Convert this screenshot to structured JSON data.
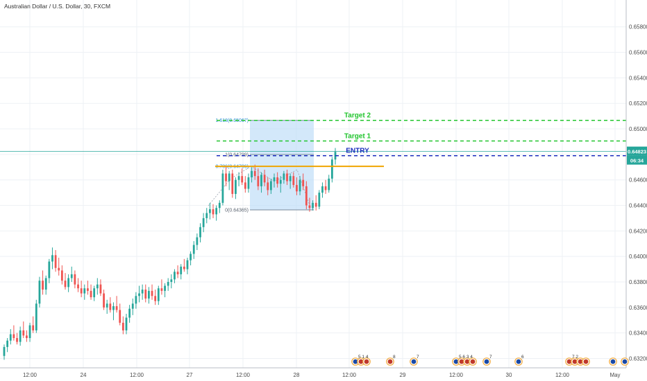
{
  "chart_data": {
    "type": "candlestick",
    "title": "Australian Dollar / U.S. Dollar, 30, FXCM",
    "x_ticks": [
      "12:00",
      "24",
      "12:00",
      "27",
      "12:00",
      "28",
      "12:00",
      "29",
      "12:00",
      "30",
      "12:00",
      "May"
    ],
    "y_ticks": [
      "0.65800",
      "0.65600",
      "0.65400",
      "0.65200",
      "0.65000",
      "0.64800",
      "0.64600",
      "0.64400",
      "0.64200",
      "0.64000",
      "0.63800",
      "0.63600",
      "0.63400",
      "0.63200"
    ],
    "ylim": [
      0.6317,
      0.6588
    ],
    "current_price": {
      "label": "0.64823",
      "value": 0.64823,
      "countdown": "06:34"
    },
    "levels": [
      {
        "name": "Target 2",
        "value": 0.65067,
        "color": "#22c52e"
      },
      {
        "name": "Target 1",
        "value": 0.64905,
        "color": "#22c52e"
      },
      {
        "name": "ENTRY",
        "value": 0.6479,
        "color": "#1a2dbd"
      },
      {
        "name": "",
        "value": 0.64706,
        "color": "#f0a500"
      }
    ],
    "fib": [
      {
        "label": "1.618(0.65067)",
        "value": 0.65067
      },
      {
        "label": "1(0.64799)",
        "value": 0.64799
      },
      {
        "label": "0.786(0.64706)",
        "value": 0.64706
      },
      {
        "label": "0(0.64365)",
        "value": 0.64365
      }
    ],
    "candles": [
      [
        0.6322,
        0.6331,
        0.6319,
        0.6329
      ],
      [
        0.6329,
        0.6336,
        0.6325,
        0.6334
      ],
      [
        0.6334,
        0.6343,
        0.6331,
        0.6339
      ],
      [
        0.6339,
        0.6346,
        0.6334,
        0.6336
      ],
      [
        0.6336,
        0.634,
        0.6331,
        0.6333
      ],
      [
        0.6333,
        0.6345,
        0.633,
        0.6342
      ],
      [
        0.6342,
        0.6349,
        0.6336,
        0.6338
      ],
      [
        0.6338,
        0.6342,
        0.6333,
        0.6336
      ],
      [
        0.6336,
        0.6348,
        0.6333,
        0.6346
      ],
      [
        0.6346,
        0.6353,
        0.634,
        0.6342
      ],
      [
        0.6342,
        0.6366,
        0.634,
        0.6363
      ],
      [
        0.6363,
        0.6384,
        0.636,
        0.6381
      ],
      [
        0.6381,
        0.6389,
        0.637,
        0.6374
      ],
      [
        0.6374,
        0.6385,
        0.637,
        0.6383
      ],
      [
        0.6383,
        0.6398,
        0.6379,
        0.6396
      ],
      [
        0.6396,
        0.6407,
        0.639,
        0.6401
      ],
      [
        0.6401,
        0.6405,
        0.6388,
        0.6391
      ],
      [
        0.6391,
        0.6399,
        0.6385,
        0.6389
      ],
      [
        0.6389,
        0.6393,
        0.6378,
        0.6381
      ],
      [
        0.6381,
        0.6387,
        0.6374,
        0.6376
      ],
      [
        0.6376,
        0.6386,
        0.6372,
        0.6383
      ],
      [
        0.6383,
        0.6392,
        0.638,
        0.6386
      ],
      [
        0.6386,
        0.6389,
        0.6375,
        0.6378
      ],
      [
        0.6378,
        0.6383,
        0.6372,
        0.6375
      ],
      [
        0.6375,
        0.6381,
        0.6368,
        0.6371
      ],
      [
        0.6371,
        0.6378,
        0.6366,
        0.6375
      ],
      [
        0.6375,
        0.6381,
        0.637,
        0.6373
      ],
      [
        0.6373,
        0.6378,
        0.6366,
        0.6368
      ],
      [
        0.6368,
        0.6377,
        0.6365,
        0.6375
      ],
      [
        0.6375,
        0.6383,
        0.637,
        0.6378
      ],
      [
        0.6378,
        0.6382,
        0.6369,
        0.6371
      ],
      [
        0.6371,
        0.6374,
        0.6358,
        0.636
      ],
      [
        0.636,
        0.6366,
        0.6355,
        0.6363
      ],
      [
        0.6363,
        0.6368,
        0.6356,
        0.6358
      ],
      [
        0.6358,
        0.6364,
        0.635,
        0.6361
      ],
      [
        0.6361,
        0.6369,
        0.6356,
        0.6358
      ],
      [
        0.6358,
        0.6363,
        0.6346,
        0.6348
      ],
      [
        0.6348,
        0.6353,
        0.6339,
        0.6342
      ],
      [
        0.6342,
        0.6355,
        0.6339,
        0.6352
      ],
      [
        0.6352,
        0.6362,
        0.6348,
        0.6359
      ],
      [
        0.6359,
        0.6367,
        0.6354,
        0.6363
      ],
      [
        0.6363,
        0.6372,
        0.6359,
        0.6369
      ],
      [
        0.6369,
        0.6377,
        0.6364,
        0.6371
      ],
      [
        0.6371,
        0.6378,
        0.6366,
        0.6374
      ],
      [
        0.6374,
        0.6378,
        0.6364,
        0.6367
      ],
      [
        0.6367,
        0.6376,
        0.6363,
        0.6373
      ],
      [
        0.6373,
        0.6378,
        0.6366,
        0.6369
      ],
      [
        0.6369,
        0.6374,
        0.6362,
        0.6365
      ],
      [
        0.6365,
        0.6377,
        0.6362,
        0.6375
      ],
      [
        0.6375,
        0.6382,
        0.637,
        0.6373
      ],
      [
        0.6373,
        0.6379,
        0.6368,
        0.6377
      ],
      [
        0.6377,
        0.6383,
        0.6373,
        0.638
      ],
      [
        0.638,
        0.6386,
        0.6375,
        0.6382
      ],
      [
        0.6382,
        0.639,
        0.6379,
        0.6388
      ],
      [
        0.6388,
        0.6393,
        0.6383,
        0.6386
      ],
      [
        0.6386,
        0.6394,
        0.6382,
        0.6392
      ],
      [
        0.6392,
        0.6398,
        0.6388,
        0.639
      ],
      [
        0.639,
        0.6399,
        0.6386,
        0.6397
      ],
      [
        0.6397,
        0.6404,
        0.6393,
        0.6402
      ],
      [
        0.6402,
        0.6412,
        0.6398,
        0.6409
      ],
      [
        0.6409,
        0.6418,
        0.6405,
        0.6415
      ],
      [
        0.6415,
        0.6426,
        0.6411,
        0.6423
      ],
      [
        0.6423,
        0.6434,
        0.6419,
        0.643
      ],
      [
        0.643,
        0.6438,
        0.6426,
        0.6434
      ],
      [
        0.6434,
        0.6442,
        0.6429,
        0.6437
      ],
      [
        0.6437,
        0.6441,
        0.643,
        0.6433
      ],
      [
        0.6433,
        0.644,
        0.6428,
        0.6438
      ],
      [
        0.6438,
        0.6444,
        0.6434,
        0.6442
      ],
      [
        0.6442,
        0.6468,
        0.644,
        0.6465
      ],
      [
        0.6465,
        0.647,
        0.6455,
        0.6459
      ],
      [
        0.6459,
        0.6467,
        0.6452,
        0.6465
      ],
      [
        0.6465,
        0.6468,
        0.6446,
        0.6449
      ],
      [
        0.6449,
        0.6462,
        0.6445,
        0.646
      ],
      [
        0.646,
        0.6466,
        0.6455,
        0.6463
      ],
      [
        0.6463,
        0.6469,
        0.6456,
        0.6458
      ],
      [
        0.6458,
        0.6463,
        0.645,
        0.6453
      ],
      [
        0.6453,
        0.6465,
        0.645,
        0.6462
      ],
      [
        0.6462,
        0.647,
        0.6458,
        0.6467
      ],
      [
        0.6467,
        0.6472,
        0.646,
        0.6463
      ],
      [
        0.6463,
        0.6469,
        0.6452,
        0.6455
      ],
      [
        0.6455,
        0.6466,
        0.645,
        0.6464
      ],
      [
        0.6464,
        0.6468,
        0.6455,
        0.6458
      ],
      [
        0.6458,
        0.6462,
        0.6448,
        0.6452
      ],
      [
        0.6452,
        0.6461,
        0.6449,
        0.6459
      ],
      [
        0.6459,
        0.6465,
        0.6454,
        0.6462
      ],
      [
        0.6462,
        0.6466,
        0.6454,
        0.6457
      ],
      [
        0.6457,
        0.6463,
        0.645,
        0.646
      ],
      [
        0.646,
        0.6467,
        0.6457,
        0.6465
      ],
      [
        0.6465,
        0.6468,
        0.6456,
        0.6459
      ],
      [
        0.6459,
        0.6465,
        0.6453,
        0.6463
      ],
      [
        0.6463,
        0.6466,
        0.6454,
        0.6456
      ],
      [
        0.6456,
        0.6462,
        0.6448,
        0.6451
      ],
      [
        0.6451,
        0.6463,
        0.6448,
        0.646
      ],
      [
        0.646,
        0.6465,
        0.6452,
        0.6455
      ],
      [
        0.6455,
        0.6459,
        0.6437,
        0.644
      ],
      [
        0.644,
        0.6446,
        0.6435,
        0.6438
      ],
      [
        0.6438,
        0.6444,
        0.6436,
        0.6442
      ],
      [
        0.6442,
        0.6448,
        0.6436,
        0.6439
      ],
      [
        0.6439,
        0.6452,
        0.6437,
        0.645
      ],
      [
        0.645,
        0.6458,
        0.6446,
        0.6455
      ],
      [
        0.6455,
        0.646,
        0.6449,
        0.6452
      ],
      [
        0.6452,
        0.6464,
        0.645,
        0.6461
      ],
      [
        0.6461,
        0.6478,
        0.6458,
        0.6476
      ],
      [
        0.6476,
        0.6485,
        0.6472,
        0.6482
      ]
    ]
  },
  "events": [
    {
      "counts": "5 1 4"
    },
    {
      "counts": "8"
    },
    {
      "counts": "7"
    },
    {
      "counts": "5 6 3 4"
    },
    {
      "counts": "7"
    },
    {
      "counts": "6"
    },
    {
      "counts": "7 2"
    }
  ]
}
